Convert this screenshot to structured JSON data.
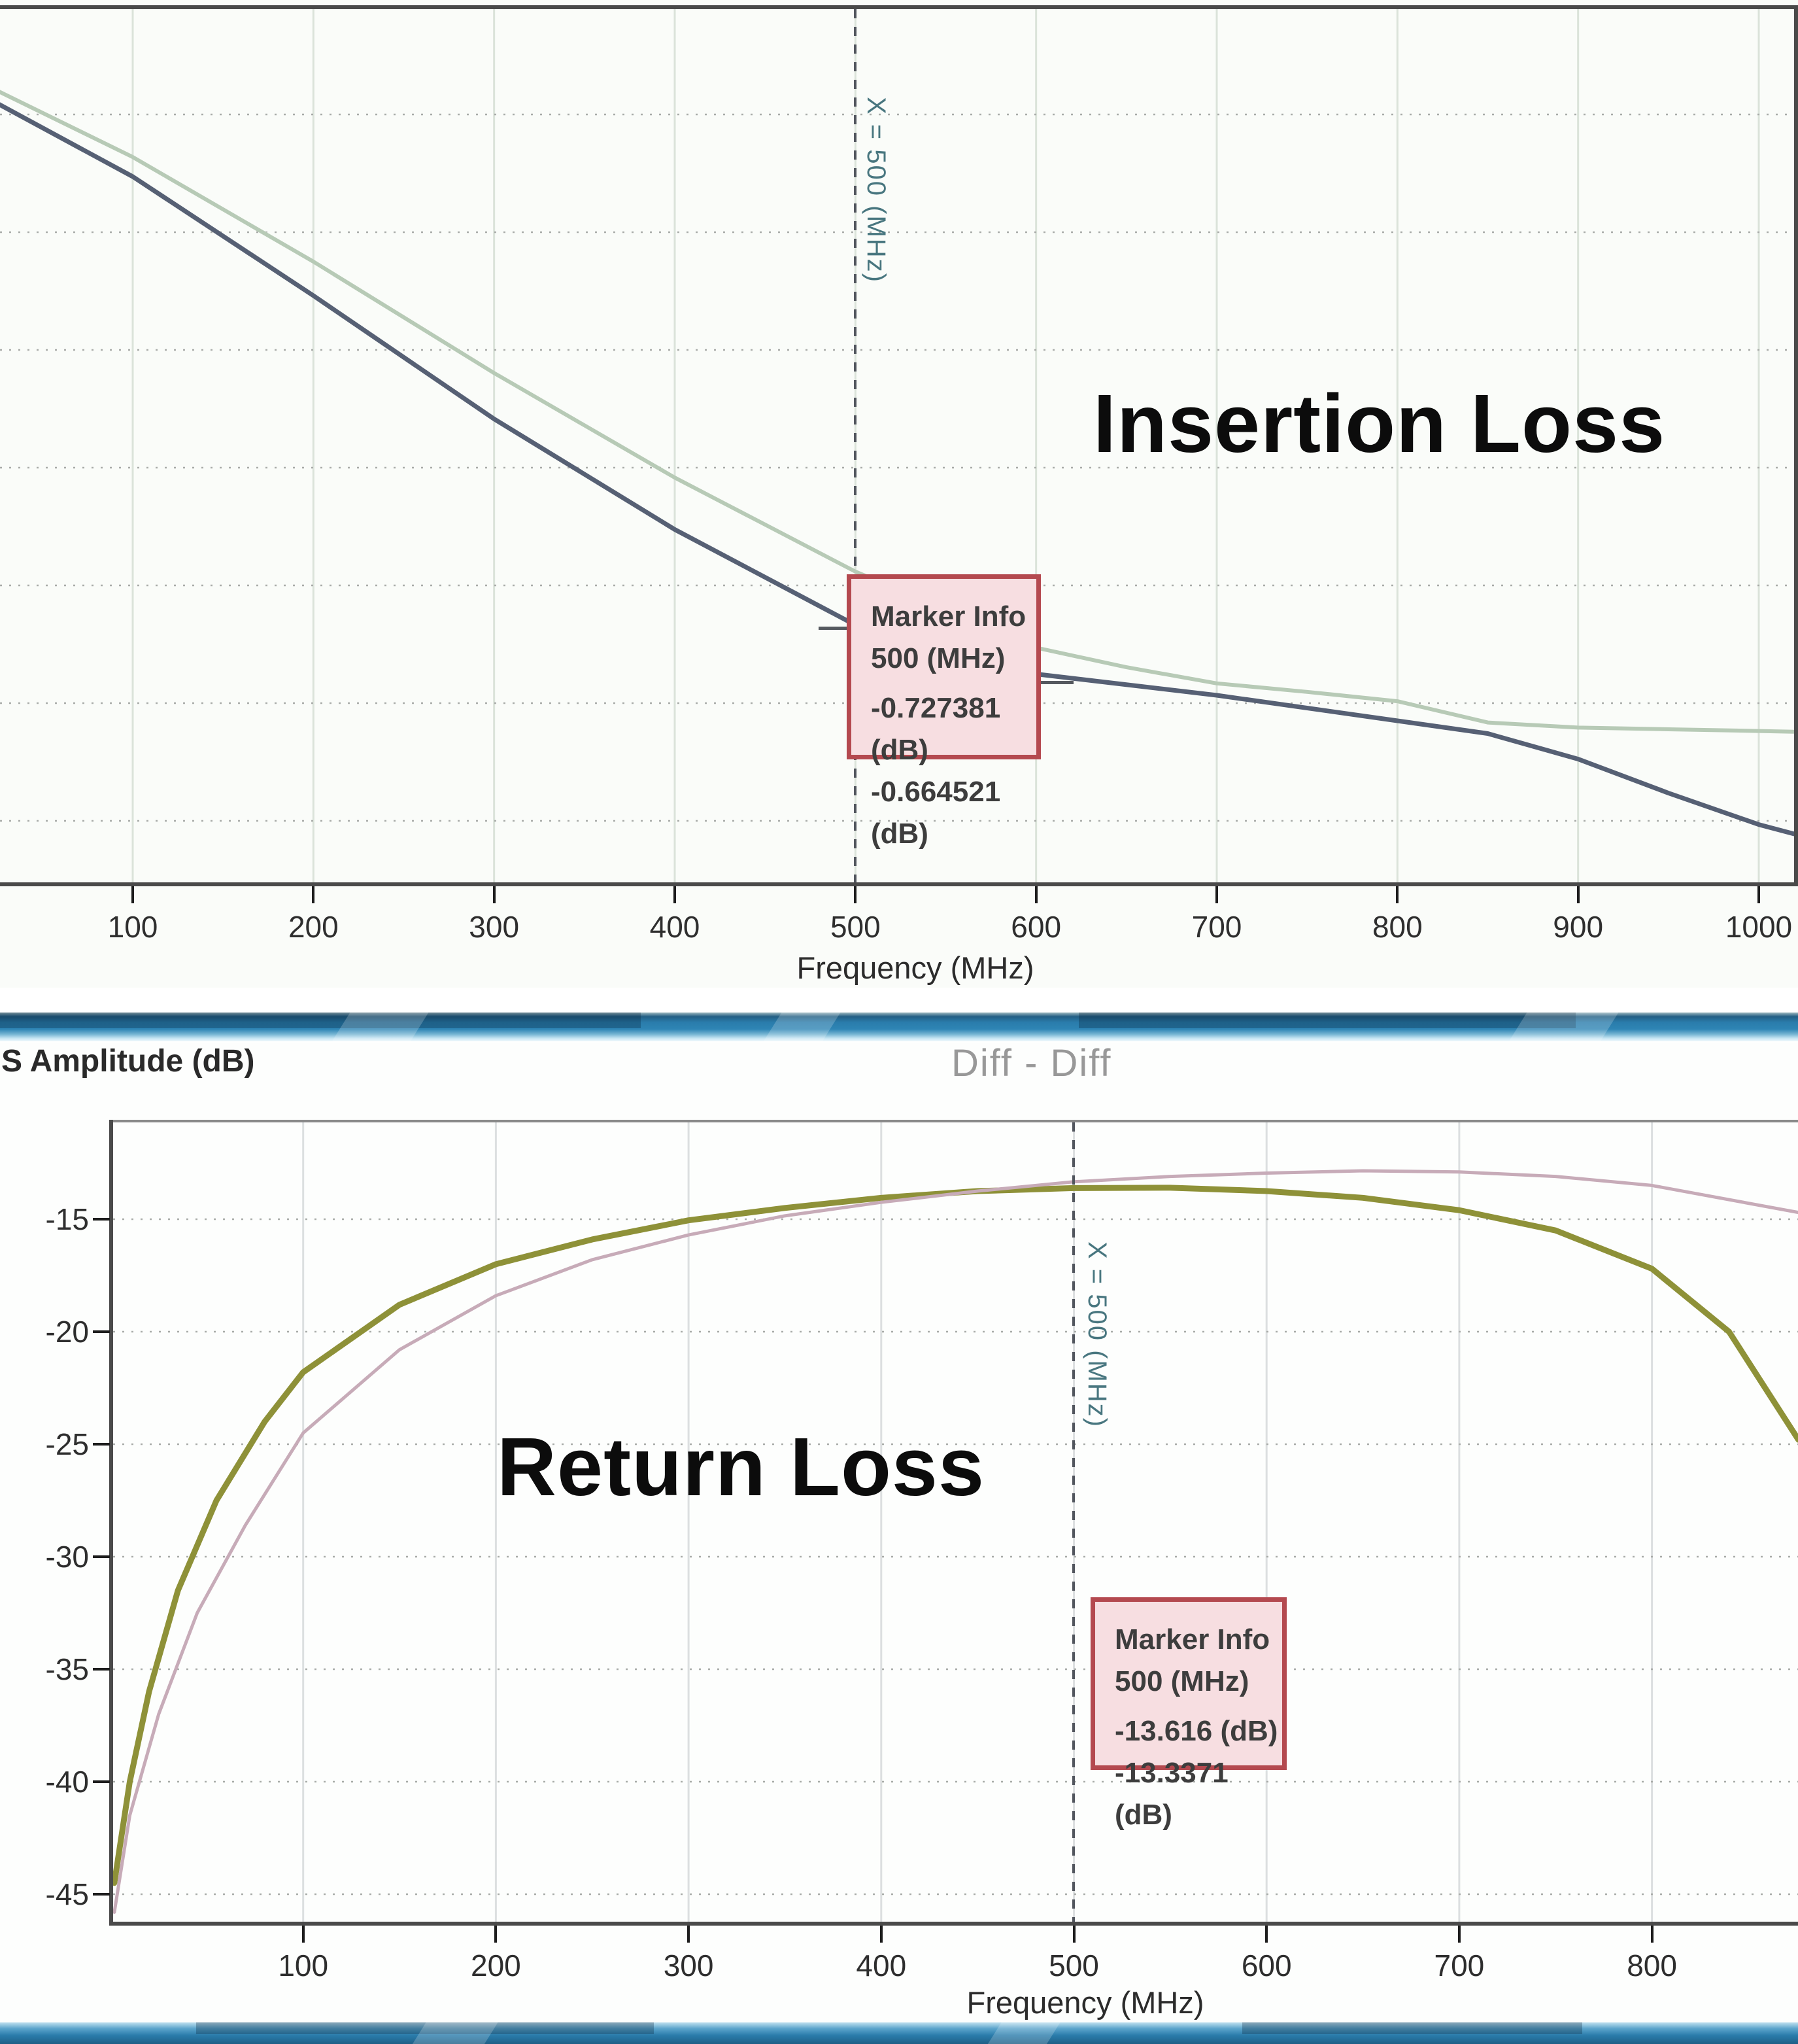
{
  "page": {
    "top_frequency_axis_label": "Frequency (MHz)",
    "bottom_frequency_axis_label": "Frequency (MHz)"
  },
  "chart_data": [
    {
      "type": "line",
      "title": "",
      "annotation": "Insertion Loss",
      "xlabel": "Frequency (MHz)",
      "ylabel": "",
      "x_ticks": [
        100,
        200,
        300,
        400,
        500,
        600,
        700,
        800,
        900,
        1000
      ],
      "xlim_mhz": [
        26,
        1023
      ],
      "grid": true,
      "legend": "none",
      "marker": {
        "x_mhz": 500,
        "axis_label": "X = 500 (MHz)",
        "box_lines": [
          "Marker Info",
          "500 (MHz)",
          "-0.727381 (dB)",
          "-0.664521 (dB)"
        ]
      },
      "series": [
        {
          "name": "insertion-loss-trace-dark-blue",
          "color": "#566074",
          "width": 7,
          "x": [
            26,
            100,
            200,
            300,
            400,
            500,
            600,
            700,
            800,
            850,
            900,
            950,
            1000,
            1023
          ],
          "y": [
            -0.115,
            -0.2,
            -0.34,
            -0.485,
            -0.615,
            -0.727381,
            -0.785,
            -0.81,
            -0.84,
            -0.855,
            -0.885,
            -0.925,
            -0.962,
            -0.975
          ]
        },
        {
          "name": "insertion-loss-trace-green",
          "color": "#b7cab6",
          "width": 6,
          "x": [
            26,
            100,
            200,
            300,
            400,
            500,
            600,
            650,
            700,
            750,
            800,
            850,
            900,
            950,
            1000,
            1023
          ],
          "y": [
            -0.1,
            -0.177,
            -0.3,
            -0.431,
            -0.554,
            -0.664521,
            -0.754,
            -0.777,
            -0.796,
            -0.806,
            -0.817,
            -0.842,
            -0.848,
            -0.85,
            -0.852,
            -0.853
          ]
        }
      ]
    },
    {
      "type": "line",
      "title": "Diff - Diff",
      "annotation": "Return Loss",
      "xlabel": "Frequency (MHz)",
      "ylabel": "S Amplitude (dB)",
      "x_ticks": [
        100,
        200,
        300,
        400,
        500,
        600,
        700,
        800
      ],
      "y_ticks": [
        -15,
        -20,
        -25,
        -30,
        -35,
        -40,
        -45
      ],
      "xlim_mhz": [
        0,
        876
      ],
      "ylim_db": [
        -46.5,
        -10.7
      ],
      "grid": true,
      "legend": "none",
      "marker": {
        "x_mhz": 500,
        "axis_label": "X = 500 (MHz)",
        "box_lines": [
          "Marker Info",
          "500 (MHz)",
          "-13.616 (dB)",
          "-13.3371 (dB)"
        ]
      },
      "series": [
        {
          "name": "return-loss-trace-olive",
          "color": "#8e9138",
          "width": 9,
          "x": [
            2,
            10,
            20,
            35,
            55,
            80,
            100,
            150,
            200,
            250,
            300,
            350,
            400,
            450,
            500,
            550,
            600,
            650,
            700,
            750,
            800,
            840,
            876
          ],
          "y": [
            -44.5,
            -40,
            -36,
            -31.5,
            -27.5,
            -24,
            -21.8,
            -18.8,
            -17.0,
            -15.9,
            -15.05,
            -14.5,
            -14.05,
            -13.75,
            -13.616,
            -13.6,
            -13.75,
            -14.05,
            -14.6,
            -15.5,
            -17.2,
            -20.0,
            -24.8
          ]
        },
        {
          "name": "return-loss-trace-pink",
          "color": "#c7abb8",
          "width": 5,
          "x": [
            2,
            10,
            25,
            45,
            70,
            100,
            150,
            200,
            250,
            300,
            350,
            400,
            450,
            500,
            550,
            600,
            650,
            700,
            750,
            800,
            876
          ],
          "y": [
            -45.8,
            -41.5,
            -37.0,
            -32.5,
            -28.6,
            -24.5,
            -20.8,
            -18.4,
            -16.8,
            -15.7,
            -14.85,
            -14.25,
            -13.75,
            -13.3371,
            -13.1,
            -12.95,
            -12.85,
            -12.9,
            -13.1,
            -13.5,
            -14.7
          ]
        }
      ]
    }
  ],
  "colors": {
    "marker_box_bg": "#f7dee1",
    "marker_box_border": "#b4494f",
    "marker_rot_label": "#48767f",
    "frame": "#4a4a4a",
    "divider_blue_dark": "#1f5f86",
    "divider_blue_mid": "#2e85b5",
    "divider_blue_light": "#c9e7f4"
  }
}
